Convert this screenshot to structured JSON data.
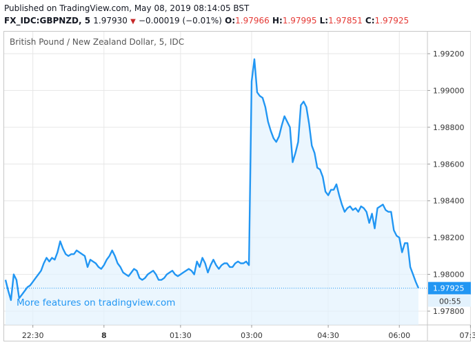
{
  "header": {
    "published": "Published on TradingView.com, May 08, 2019 08:14:05 BST",
    "symbol": "FX_IDC:GBPNZD, 5",
    "last": "1.97930",
    "change": "−0.00019 (−0.01%)",
    "o_label": "O:",
    "o_val": "1.97966",
    "h_label": "H:",
    "h_val": "1.97995",
    "l_label": "L:",
    "l_val": "1.97851",
    "c_label": "C:",
    "c_val": "1.97925"
  },
  "chart_title": "British Pound / New Zealand Dollar, 5, IDC",
  "watermark": "More features on tradingview.com",
  "price_label": "1.97925",
  "countdown": "00:55",
  "colors": {
    "line": "#2196f3",
    "fill": "#e3f2fd",
    "grid": "#e6e6e6"
  },
  "chart_data": {
    "type": "area",
    "ylim": [
      1.977,
      1.993
    ],
    "y_ticks": [
      1.978,
      1.98,
      1.982,
      1.984,
      1.986,
      1.988,
      1.99,
      1.992
    ],
    "y_tick_labels": [
      "1.97800",
      "1.98000",
      "1.98200",
      "1.98400",
      "1.98600",
      "1.98800",
      "1.99000",
      "1.99200"
    ],
    "x_ticks": [
      {
        "i": 10,
        "label": "22:30"
      },
      {
        "i": 36,
        "label": "8"
      },
      {
        "i": 64,
        "label": "01:30"
      },
      {
        "i": 90,
        "label": "03:00"
      },
      {
        "i": 118,
        "label": "04:30"
      },
      {
        "i": 144,
        "label": "06:00"
      },
      {
        "i": 170,
        "label": "07:30"
      }
    ],
    "last_value": 1.97925,
    "values": [
      1.9797,
      1.9791,
      1.9786,
      1.98,
      1.9797,
      1.9787,
      1.9789,
      1.9791,
      1.9793,
      1.9794,
      1.9796,
      1.9798,
      1.98,
      1.9802,
      1.9806,
      1.9809,
      1.9807,
      1.9809,
      1.9808,
      1.9812,
      1.9818,
      1.9814,
      1.9811,
      1.981,
      1.9811,
      1.9811,
      1.9813,
      1.9812,
      1.9811,
      1.981,
      1.9804,
      1.9808,
      1.9807,
      1.9806,
      1.9804,
      1.9803,
      1.9805,
      1.9808,
      1.981,
      1.9813,
      1.981,
      1.9806,
      1.9804,
      1.9801,
      1.98,
      1.9799,
      1.9801,
      1.9803,
      1.9802,
      1.9798,
      1.9797,
      1.9798,
      1.98,
      1.9801,
      1.9802,
      1.98,
      1.9797,
      1.9797,
      1.9798,
      1.98,
      1.9801,
      1.9802,
      1.98,
      1.9799,
      1.98,
      1.9801,
      1.9802,
      1.9803,
      1.9802,
      1.98,
      1.9807,
      1.9804,
      1.9809,
      1.9806,
      1.9801,
      1.9805,
      1.9808,
      1.9805,
      1.9803,
      1.9805,
      1.9806,
      1.9806,
      1.9804,
      1.9804,
      1.9806,
      1.9807,
      1.9806,
      1.9806,
      1.9807,
      1.9805,
      1.9905,
      1.9917,
      1.9899,
      1.9897,
      1.9896,
      1.9891,
      1.9883,
      1.9878,
      1.9874,
      1.9872,
      1.9875,
      1.9881,
      1.9886,
      1.9883,
      1.988,
      1.9861,
      1.9866,
      1.9872,
      1.9892,
      1.9894,
      1.9891,
      1.9882,
      1.987,
      1.9866,
      1.9858,
      1.9857,
      1.9853,
      1.9845,
      1.9843,
      1.9846,
      1.9846,
      1.9849,
      1.9843,
      1.9838,
      1.9834,
      1.9836,
      1.9837,
      1.9835,
      1.9836,
      1.9834,
      1.9837,
      1.9836,
      1.9834,
      1.9828,
      1.9833,
      1.9825,
      1.9836,
      1.9837,
      1.9838,
      1.9835,
      1.9834,
      1.9834,
      1.9824,
      1.9821,
      1.982,
      1.9812,
      1.9817,
      1.9817,
      1.9804,
      1.98,
      1.9796,
      1.97925
    ]
  }
}
